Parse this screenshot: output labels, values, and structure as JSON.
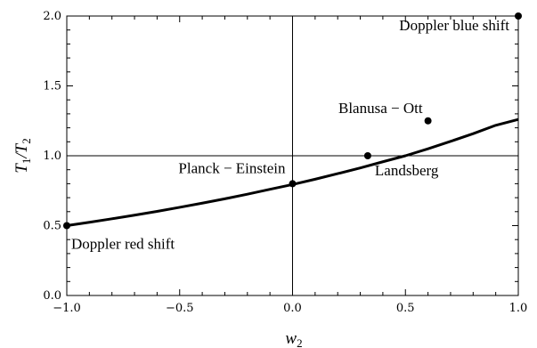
{
  "chart_data": {
    "type": "line",
    "title": "",
    "xlabel": "w",
    "xlabel_sub": "2",
    "ylabel_parts": [
      "T",
      "1",
      "/T",
      "2"
    ],
    "xlim": [
      -1.0,
      1.0
    ],
    "ylim": [
      0.0,
      2.0
    ],
    "grid": false,
    "reference_lines": {
      "x": 0.0,
      "y": 1.0
    },
    "x_ticks": [
      -1.0,
      -0.5,
      0.0,
      0.5,
      1.0
    ],
    "x_tick_labels": [
      "−1.0",
      "−0.5",
      "0.0",
      "0.5",
      "1.0"
    ],
    "y_ticks": [
      0.0,
      0.5,
      1.0,
      1.5,
      2.0
    ],
    "y_tick_labels": [
      "0.0",
      "0.5",
      "1.0",
      "1.5",
      "2.0"
    ],
    "series": [
      {
        "x": [
          -1.0,
          -0.9,
          -0.8,
          -0.7,
          -0.6,
          -0.5,
          -0.4,
          -0.3,
          -0.2,
          -0.1,
          0.0,
          0.1,
          0.2,
          0.3,
          0.4,
          0.5,
          0.6,
          0.7,
          0.8,
          0.9,
          1.0
        ],
        "values": [
          0.5,
          0.524,
          0.549,
          0.575,
          0.602,
          0.631,
          0.661,
          0.692,
          0.725,
          0.76,
          0.794,
          0.832,
          0.872,
          0.913,
          0.957,
          1.0,
          1.05,
          1.103,
          1.158,
          1.218,
          1.26
        ]
      }
    ],
    "points": [
      {
        "x": -1.0,
        "y": 0.5,
        "label": "Doppler red shift"
      },
      {
        "x": 0.0,
        "y": 0.8,
        "label": "Planck − Einstein"
      },
      {
        "x": 0.333,
        "y": 1.0,
        "label": "Landsberg"
      },
      {
        "x": 0.6,
        "y": 1.25,
        "label": "Blanusa − Ott"
      },
      {
        "x": 1.0,
        "y": 2.0,
        "label": "Doppler blue shift"
      }
    ]
  }
}
